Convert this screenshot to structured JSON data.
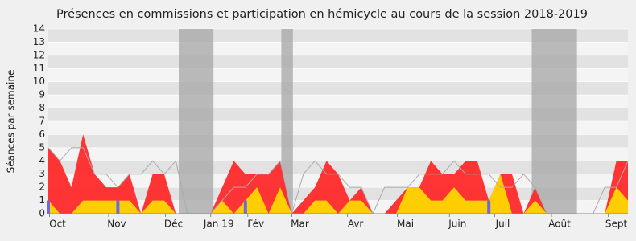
{
  "chart_data": {
    "type": "area",
    "title": "Présences en commissions et participation en hémicycle au cours de la session 2018-2019",
    "y_label": "Séances par semaine",
    "x": [
      0,
      1,
      2,
      3,
      4,
      5,
      6,
      7,
      8,
      9,
      10,
      11,
      12,
      13,
      14,
      15,
      16,
      17,
      18,
      19,
      20,
      21,
      22,
      23,
      24,
      25,
      26,
      27,
      28,
      29,
      30,
      31,
      32,
      33,
      34,
      35,
      36,
      37,
      38,
      39,
      40,
      41,
      42,
      43,
      44,
      45,
      46,
      47,
      48,
      49,
      50
    ],
    "xlim": [
      0,
      50
    ],
    "ylim": [
      0,
      14
    ],
    "yticks": [
      0,
      1,
      2,
      3,
      4,
      5,
      6,
      7,
      8,
      9,
      10,
      11,
      12,
      13,
      14
    ],
    "months": [
      {
        "label": "Oct",
        "x": 0.8
      },
      {
        "label": "Nov",
        "x": 5.9
      },
      {
        "label": "Déc",
        "x": 10.8
      },
      {
        "label": "Jan 19",
        "x": 14.7
      },
      {
        "label": "Fév",
        "x": 17.9
      },
      {
        "label": "Mar",
        "x": 21.7
      },
      {
        "label": "Avr",
        "x": 26.5
      },
      {
        "label": "Mai",
        "x": 30.8
      },
      {
        "label": "Juin",
        "x": 35.3
      },
      {
        "label": "Juil",
        "x": 39.2
      },
      {
        "label": "Août",
        "x": 44.1
      },
      {
        "label": "Sept",
        "x": 49
      }
    ],
    "holidays": [
      [
        11.25,
        14.25
      ],
      [
        20.1,
        21.1
      ],
      [
        41.7,
        45.6
      ]
    ],
    "holiday_color": "#aaaaaa",
    "series": [
      {
        "kind": "area",
        "color": "#ff2a2a",
        "values": [
          5,
          4,
          2,
          6,
          3,
          2,
          2,
          3,
          0,
          3,
          3,
          0,
          0,
          0,
          0,
          2,
          4,
          3,
          3,
          3,
          4,
          0,
          1,
          2,
          4,
          3,
          1,
          2,
          0,
          0,
          1,
          2,
          2,
          4,
          3,
          3,
          4,
          4,
          1,
          3,
          3,
          0,
          2,
          0,
          0,
          0,
          0,
          0,
          0,
          4,
          4
        ]
      },
      {
        "kind": "area",
        "color": "#ffd700",
        "values": [
          1,
          0,
          0,
          1,
          1,
          1,
          1,
          1,
          0,
          1,
          1,
          0,
          0,
          0,
          0,
          1,
          0,
          1,
          2,
          0,
          2,
          0,
          0,
          1,
          1,
          0,
          1,
          1,
          0,
          0,
          0,
          2,
          2,
          1,
          1,
          2,
          1,
          1,
          1,
          3,
          0,
          0,
          1,
          0,
          0,
          0,
          0,
          0,
          0,
          2,
          1
        ]
      },
      {
        "kind": "line",
        "color": "#aaaaaa",
        "values": [
          5,
          4,
          5,
          5,
          3,
          3,
          2,
          3,
          3,
          4,
          3,
          4,
          0,
          0,
          0,
          1,
          2,
          2,
          3,
          3,
          4,
          0,
          3,
          4,
          3,
          3,
          2,
          2,
          0,
          2,
          2,
          2,
          3,
          3,
          3,
          4,
          3,
          3,
          3,
          2,
          2,
          3,
          2,
          0,
          0,
          0,
          0,
          0,
          2,
          2,
          4
        ]
      },
      {
        "kind": "bar",
        "color": "#6b6bdd",
        "values": [
          1,
          0,
          0,
          0,
          0,
          0,
          1,
          0,
          0,
          0,
          0,
          0,
          0,
          0,
          0,
          0,
          0,
          1,
          0,
          0,
          0,
          0,
          0,
          0,
          0,
          0,
          0,
          0,
          0,
          0,
          0,
          0,
          0,
          0,
          0,
          0,
          0,
          0,
          1,
          0,
          0,
          0,
          0,
          0,
          0,
          0,
          0,
          0,
          0,
          0,
          0
        ]
      }
    ]
  }
}
